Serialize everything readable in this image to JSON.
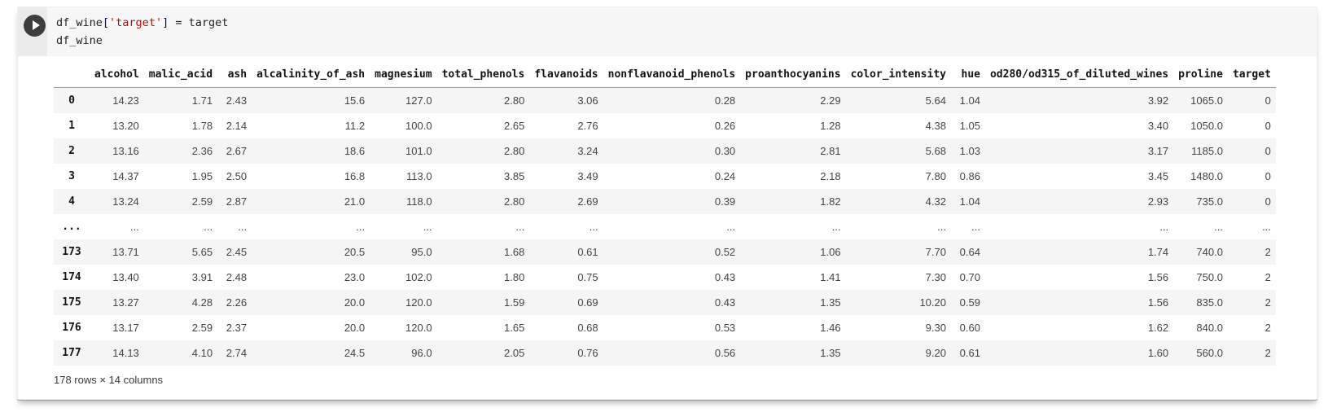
{
  "cell": {
    "run_button": {
      "icon": "play-icon"
    },
    "code": {
      "line1": {
        "var": "df_wine",
        "bracket_open": "[",
        "string": "'target'",
        "bracket_close": "]",
        "rest": " = target"
      },
      "line2": "df_wine"
    }
  },
  "table": {
    "columns": [
      "alcohol",
      "malic_acid",
      "ash",
      "alcalinity_of_ash",
      "magnesium",
      "total_phenols",
      "flavanoids",
      "nonflavanoid_phenols",
      "proanthocyanins",
      "color_intensity",
      "hue",
      "od280/od315_of_diluted_wines",
      "proline",
      "target"
    ],
    "rows": [
      {
        "index": "0",
        "values": [
          "14.23",
          "1.71",
          "2.43",
          "15.6",
          "127.0",
          "2.80",
          "3.06",
          "0.28",
          "2.29",
          "5.64",
          "1.04",
          "3.92",
          "1065.0",
          "0"
        ]
      },
      {
        "index": "1",
        "values": [
          "13.20",
          "1.78",
          "2.14",
          "11.2",
          "100.0",
          "2.65",
          "2.76",
          "0.26",
          "1.28",
          "4.38",
          "1.05",
          "3.40",
          "1050.0",
          "0"
        ]
      },
      {
        "index": "2",
        "values": [
          "13.16",
          "2.36",
          "2.67",
          "18.6",
          "101.0",
          "2.80",
          "3.24",
          "0.30",
          "2.81",
          "5.68",
          "1.03",
          "3.17",
          "1185.0",
          "0"
        ]
      },
      {
        "index": "3",
        "values": [
          "14.37",
          "1.95",
          "2.50",
          "16.8",
          "113.0",
          "3.85",
          "3.49",
          "0.24",
          "2.18",
          "7.80",
          "0.86",
          "3.45",
          "1480.0",
          "0"
        ]
      },
      {
        "index": "4",
        "values": [
          "13.24",
          "2.59",
          "2.87",
          "21.0",
          "118.0",
          "2.80",
          "2.69",
          "0.39",
          "1.82",
          "4.32",
          "1.04",
          "2.93",
          "735.0",
          "0"
        ]
      },
      {
        "index": "...",
        "values": [
          "...",
          "...",
          "...",
          "...",
          "...",
          "...",
          "...",
          "...",
          "...",
          "...",
          "...",
          "...",
          "...",
          "..."
        ]
      },
      {
        "index": "173",
        "values": [
          "13.71",
          "5.65",
          "2.45",
          "20.5",
          "95.0",
          "1.68",
          "0.61",
          "0.52",
          "1.06",
          "7.70",
          "0.64",
          "1.74",
          "740.0",
          "2"
        ]
      },
      {
        "index": "174",
        "values": [
          "13.40",
          "3.91",
          "2.48",
          "23.0",
          "102.0",
          "1.80",
          "0.75",
          "0.43",
          "1.41",
          "7.30",
          "0.70",
          "1.56",
          "750.0",
          "2"
        ]
      },
      {
        "index": "175",
        "values": [
          "13.27",
          "4.28",
          "2.26",
          "20.0",
          "120.0",
          "1.59",
          "0.69",
          "0.43",
          "1.35",
          "10.20",
          "0.59",
          "1.56",
          "835.0",
          "2"
        ]
      },
      {
        "index": "176",
        "values": [
          "13.17",
          "2.59",
          "2.37",
          "20.0",
          "120.0",
          "1.65",
          "0.68",
          "0.53",
          "1.46",
          "9.30",
          "0.60",
          "1.62",
          "840.0",
          "2"
        ]
      },
      {
        "index": "177",
        "values": [
          "14.13",
          "4.10",
          "2.74",
          "24.5",
          "96.0",
          "2.05",
          "0.76",
          "0.56",
          "1.35",
          "9.20",
          "0.61",
          "1.60",
          "560.0",
          "2"
        ]
      }
    ],
    "footer": "178 rows × 14 columns"
  },
  "colors": {
    "code_string": "#a31515",
    "code_bracket": "#000080",
    "code_text": "#1f1f1f",
    "run_button_bg": "#3d3d3d",
    "code_bg": "#f7f7f7",
    "gutter_bg": "#ebebeb",
    "row_stripe": "#f5f5f5",
    "header_border": "#9c9c9c"
  }
}
